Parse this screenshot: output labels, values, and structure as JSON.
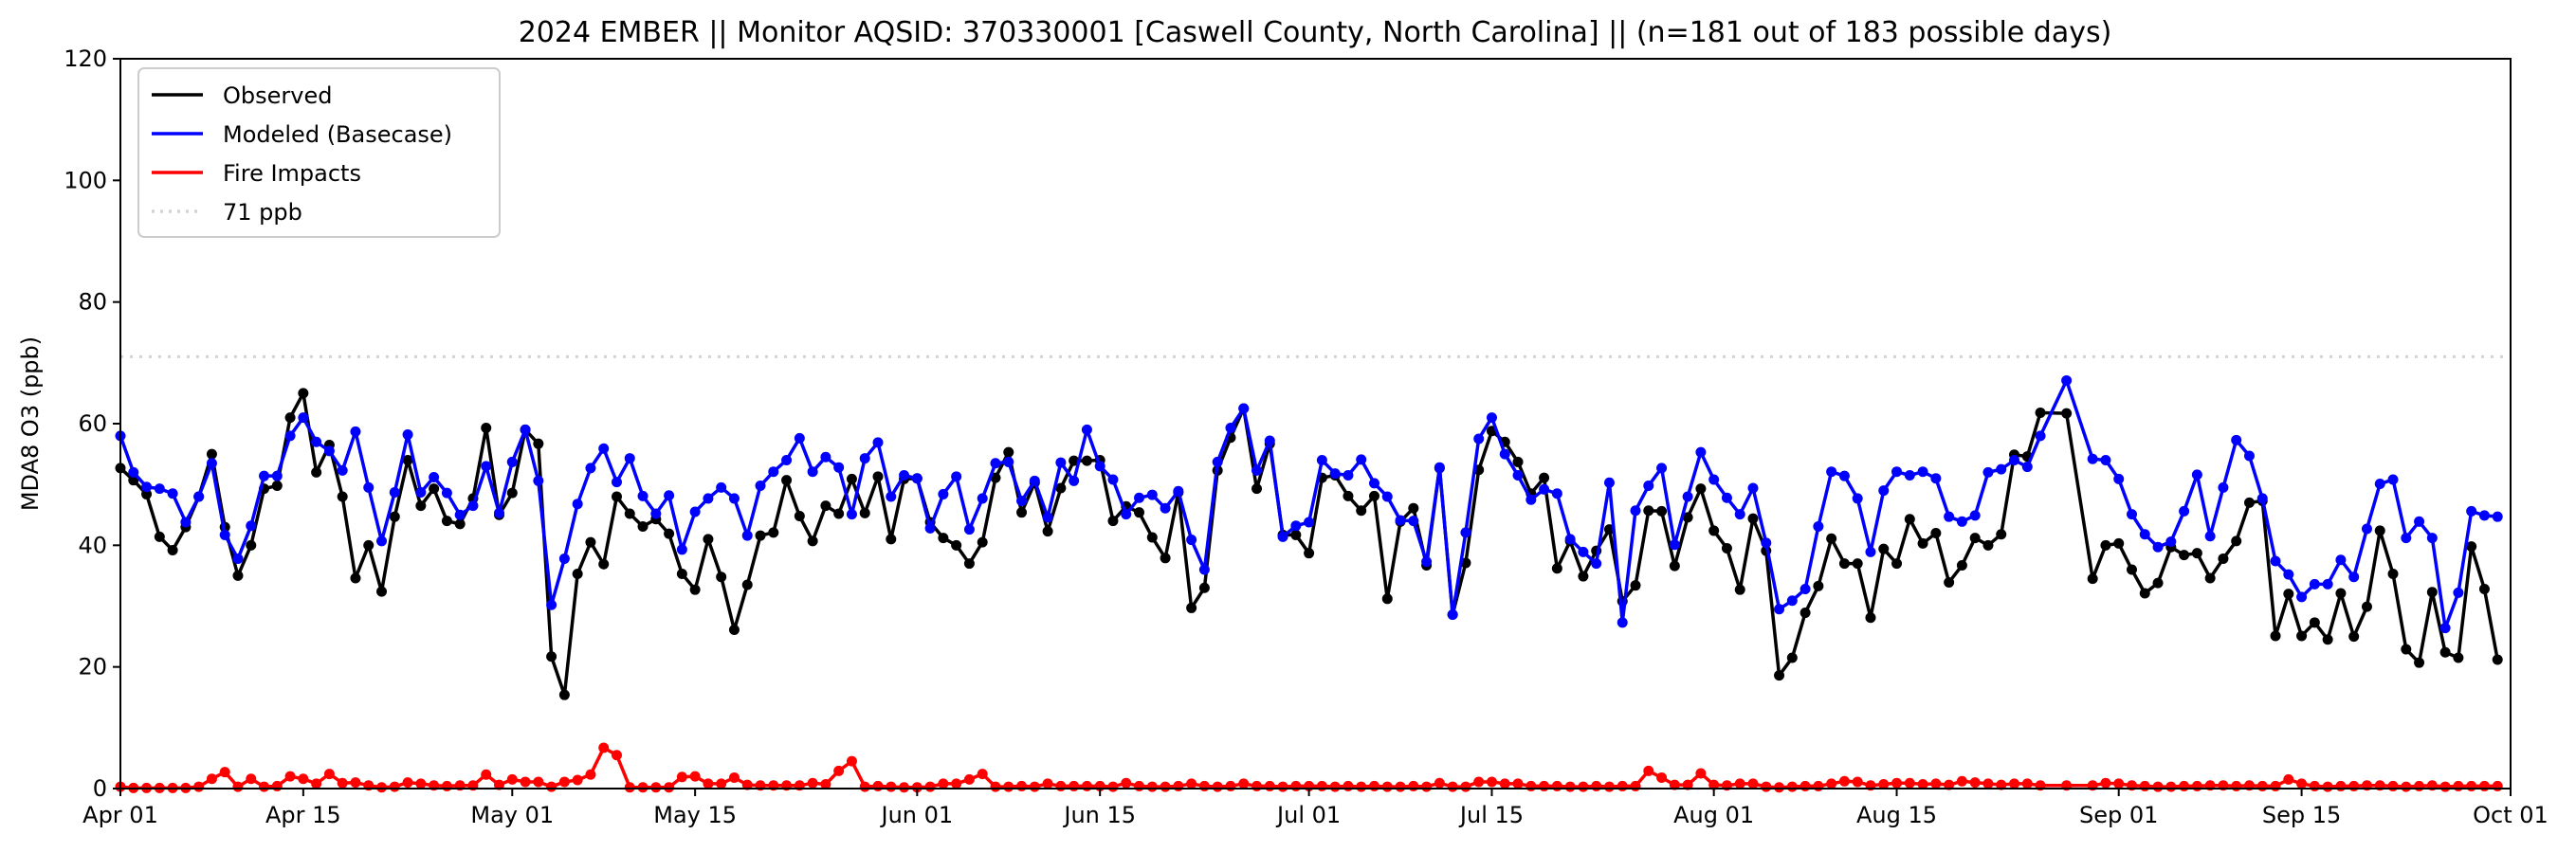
{
  "chart_data": {
    "type": "line",
    "title": "2024 EMBER || Monitor AQSID: 370330001 [Caswell County, North Carolina] || (n=181 out of 183 possible days)",
    "xlabel": "",
    "ylabel": "MDA8 O3 (ppb)",
    "start_date": "2024-04-01",
    "xlim": [
      0,
      183
    ],
    "ylim": [
      0,
      120
    ],
    "yticks": [
      0,
      20,
      40,
      60,
      80,
      100,
      120
    ],
    "xticks": [
      {
        "day": 0,
        "label": "Apr 01"
      },
      {
        "day": 14,
        "label": "Apr 15"
      },
      {
        "day": 30,
        "label": "May 01"
      },
      {
        "day": 44,
        "label": "May 15"
      },
      {
        "day": 61,
        "label": "Jun 01"
      },
      {
        "day": 75,
        "label": "Jun 15"
      },
      {
        "day": 91,
        "label": "Jul 01"
      },
      {
        "day": 105,
        "label": "Jul 15"
      },
      {
        "day": 122,
        "label": "Aug 01"
      },
      {
        "day": 136,
        "label": "Aug 15"
      },
      {
        "day": 153,
        "label": "Sep 01"
      },
      {
        "day": 167,
        "label": "Sep 15"
      },
      {
        "day": 183,
        "label": "Oct 01"
      }
    ],
    "grid": false,
    "legend_position": "top-left",
    "threshold": {
      "value": 71,
      "label": "71 ppb",
      "color": "#d3d3d3"
    },
    "series": [
      {
        "name": "Observed",
        "color": "#000000",
        "values": [
          52.7,
          50.7,
          48.4,
          41.4,
          39.2,
          43,
          48,
          55,
          43,
          35,
          40,
          49.3,
          49.8,
          61,
          65,
          52,
          56.5,
          48,
          34.6,
          40,
          32.4,
          44.7,
          54,
          46.5,
          49.3,
          44,
          43.5,
          47.7,
          59.3,
          45,
          48.6,
          59,
          56.7,
          21.7,
          15.4,
          35.3,
          40.5,
          36.9,
          48,
          45.2,
          43.1,
          44.3,
          41.9,
          35.3,
          32.7,
          41,
          34.8,
          26.1,
          33.5,
          41.6,
          42.1,
          50.7,
          44.8,
          40.7,
          46.5,
          45.2,
          50.9,
          45.3,
          51.3,
          41,
          50.9,
          51,
          43.8,
          41.2,
          40,
          37,
          40.5,
          51.1,
          55.3,
          45.4,
          50.3,
          42.3,
          49.4,
          53.9,
          53.9,
          54,
          44,
          46.4,
          45.4,
          41.3,
          37.9,
          48.7,
          29.7,
          33,
          52.3,
          57.7,
          62.5,
          49.3,
          56.7,
          41.7,
          41.7,
          38.7,
          51.1,
          51.5,
          48.1,
          45.7,
          48.1,
          31.2,
          43.9,
          46.1,
          36.7,
          52.7,
          28.6,
          37.1,
          52.4,
          58.8,
          57,
          53.7,
          48.5,
          51.1,
          36.2,
          40.7,
          34.9,
          39.1,
          42.6,
          30.8,
          33.4,
          45.7,
          45.6,
          36.6,
          44.6,
          49.3,
          42.4,
          39.5,
          32.7,
          44.4,
          39.1,
          18.6,
          21.5,
          28.9,
          33.3,
          41.1,
          37,
          37,
          28.1,
          39.4,
          37,
          44.3,
          40.3,
          42,
          33.9,
          36.7,
          41.2,
          40,
          41.8,
          54.9,
          54.6,
          61.8,
          null,
          61.7,
          null,
          34.5,
          40,
          40.3,
          36,
          32.1,
          33.8,
          39.7,
          38.4,
          38.7,
          34.6,
          37.8,
          40.7,
          47,
          47.3,
          25.1,
          32,
          25.1,
          27.3,
          24.5,
          32.1,
          25,
          29.9,
          42.4,
          35.3,
          22.9,
          20.7,
          32.3,
          22.4,
          21.5,
          39.8,
          32.8,
          21.2
        ]
      },
      {
        "name": "Modeled (Basecase)",
        "color": "#0000ff",
        "values": [
          58,
          52,
          49.6,
          49.3,
          48.5,
          43.8,
          48,
          53.5,
          41.7,
          37.8,
          43.2,
          51.4,
          51.4,
          58,
          61,
          57,
          55.5,
          52.3,
          58.7,
          49.5,
          40.7,
          48.7,
          58.2,
          48.7,
          51.2,
          48.6,
          45,
          46.5,
          53,
          45.3,
          53.7,
          59,
          50.6,
          30.2,
          37.8,
          46.8,
          52.7,
          55.9,
          50.4,
          54.3,
          48.1,
          45.2,
          48.2,
          39.3,
          45.5,
          47.7,
          49.5,
          47.7,
          41.6,
          49.8,
          52.1,
          54,
          57.6,
          52.1,
          54.5,
          52.8,
          45.1,
          54.3,
          56.9,
          48,
          51.5,
          51,
          42.8,
          48.4,
          51.3,
          42.6,
          47.7,
          53.5,
          53.7,
          47.3,
          50.6,
          44.6,
          53.6,
          50.6,
          59,
          53,
          50.8,
          45.1,
          47.8,
          48.3,
          46.1,
          48.9,
          40.9,
          36,
          53.7,
          59.3,
          62.5,
          52.3,
          57.2,
          41.4,
          43.2,
          43.8,
          54,
          51.8,
          51.5,
          54.1,
          50.2,
          48,
          44.1,
          44,
          37.3,
          52.8,
          28.6,
          42.1,
          57.5,
          61,
          55,
          51.5,
          47.5,
          49.2,
          48.5,
          41,
          38.9,
          37,
          50.3,
          27.3,
          45.7,
          49.8,
          52.7,
          40.1,
          48,
          55.3,
          50.8,
          47.8,
          45.1,
          49.4,
          40.4,
          29.5,
          30.9,
          32.8,
          43.1,
          52.1,
          51.4,
          47.7,
          38.9,
          49,
          52.1,
          51.5,
          52.1,
          51,
          44.7,
          43.9,
          44.9,
          52,
          52.5,
          54,
          52.9,
          58,
          null,
          67.1,
          null,
          54.2,
          54,
          50.9,
          45.1,
          41.8,
          39.7,
          40.6,
          45.6,
          51.6,
          41.5,
          49.5,
          57.3,
          54.7,
          47.7,
          37.4,
          35.2,
          31.5,
          33.6,
          33.6,
          37.6,
          34.8,
          42.7,
          50.1,
          50.8,
          41.2,
          43.9,
          41.2,
          26.4,
          32.2,
          45.6,
          44.9,
          44.7
        ]
      },
      {
        "name": "Fire Impacts",
        "color": "#ff0000",
        "values": [
          0.3,
          0.1,
          0.1,
          0.1,
          0.1,
          0.1,
          0.3,
          1.6,
          2.7,
          0.3,
          1.6,
          0.3,
          0.4,
          2,
          1.6,
          0.8,
          2.4,
          0.9,
          1,
          0.5,
          0.2,
          0.3,
          1,
          0.8,
          0.5,
          0.4,
          0.5,
          0.5,
          2.3,
          0.6,
          1.5,
          1.1,
          1.1,
          0.3,
          1.1,
          1.4,
          2.3,
          6.7,
          5.5,
          0.2,
          0.2,
          0.2,
          0.2,
          1.9,
          2,
          0.8,
          0.8,
          1.8,
          0.6,
          0.5,
          0.5,
          0.5,
          0.5,
          0.9,
          0.7,
          2.9,
          4.5,
          0.3,
          0.4,
          0.3,
          0.2,
          0.2,
          0.3,
          0.8,
          0.8,
          1.5,
          2.4,
          0.3,
          0.3,
          0.4,
          0.3,
          0.8,
          0.4,
          0.4,
          0.4,
          0.4,
          0.3,
          0.9,
          0.4,
          0.3,
          0.3,
          0.4,
          0.8,
          0.4,
          0.3,
          0.4,
          0.8,
          0.4,
          0.4,
          0.3,
          0.4,
          0.4,
          0.4,
          0.3,
          0.4,
          0.3,
          0.4,
          0.3,
          0.3,
          0.4,
          0.3,
          0.9,
          0.3,
          0.3,
          1.1,
          1.1,
          0.8,
          0.8,
          0.4,
          0.4,
          0.4,
          0.3,
          0.3,
          0.4,
          0.3,
          0.4,
          0.4,
          2.9,
          1.8,
          0.6,
          0.6,
          2.5,
          0.6,
          0.5,
          0.8,
          0.8,
          0.3,
          0.2,
          0.3,
          0.4,
          0.4,
          0.8,
          1.2,
          1.1,
          0.5,
          0.7,
          0.9,
          0.9,
          0.7,
          0.8,
          0.6,
          1.2,
          1,
          0.8,
          0.6,
          0.8,
          0.8,
          0.5,
          null,
          0.5,
          null,
          0.5,
          0.9,
          0.8,
          0.5,
          0.4,
          0.3,
          0.3,
          0.4,
          0.4,
          0.5,
          0.5,
          0.4,
          0.5,
          0.4,
          0.4,
          1.5,
          0.8,
          0.4,
          0.3,
          0.4,
          0.4,
          0.5,
          0.5,
          0.4,
          0.3,
          0.4,
          0.5,
          0.3,
          0.4,
          0.4,
          0.4,
          0.4
        ]
      }
    ]
  }
}
